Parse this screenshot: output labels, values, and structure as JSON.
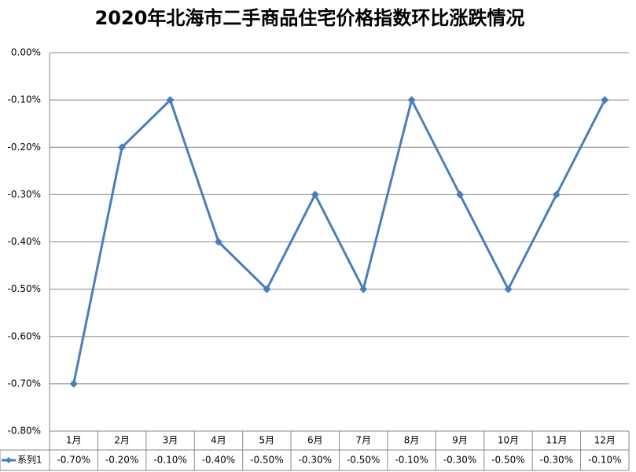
{
  "chart_data": {
    "type": "line",
    "title": "2020年北海市二手商品住宅价格指数环比涨跌情况",
    "categories": [
      "1月",
      "2月",
      "3月",
      "4月",
      "5月",
      "6月",
      "7月",
      "8月",
      "9月",
      "10月",
      "11月",
      "12月"
    ],
    "series": [
      {
        "name": "系列1",
        "color": "#4a7ebb",
        "values": [
          -0.7,
          -0.2,
          -0.1,
          -0.4,
          -0.5,
          -0.3,
          -0.5,
          -0.1,
          -0.3,
          -0.5,
          -0.3,
          -0.1
        ],
        "value_labels": [
          "-0.70%",
          "-0.20%",
          "-0.10%",
          "-0.40%",
          "-0.50%",
          "-0.30%",
          "-0.50%",
          "-0.10%",
          "-0.30%",
          "-0.50%",
          "-0.30%",
          "-0.10%"
        ]
      }
    ],
    "ylim": [
      -0.8,
      0
    ],
    "yticks": [
      {
        "value": 0,
        "label": "0.00%"
      },
      {
        "value": -0.1,
        "label": "-0.10%"
      },
      {
        "value": -0.2,
        "label": "-0.20%"
      },
      {
        "value": -0.3,
        "label": "-0.30%"
      },
      {
        "value": -0.4,
        "label": "-0.40%"
      },
      {
        "value": -0.5,
        "label": "-0.50%"
      },
      {
        "value": -0.6,
        "label": "-0.60%"
      },
      {
        "value": -0.7,
        "label": "-0.70%"
      },
      {
        "value": -0.8,
        "label": "-0.80%"
      }
    ],
    "grid": true,
    "legend": "data-table"
  }
}
